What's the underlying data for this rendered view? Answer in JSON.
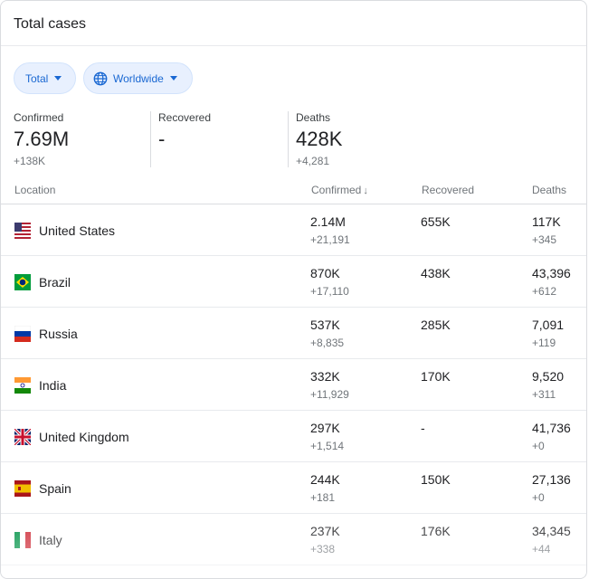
{
  "card": {
    "title": "Total cases"
  },
  "filters": {
    "type": "Total",
    "region": "Worldwide"
  },
  "stats": [
    {
      "label": "Confirmed",
      "value": "7.69M",
      "delta": "+138K"
    },
    {
      "label": "Recovered",
      "value": "-",
      "delta": ""
    },
    {
      "label": "Deaths",
      "value": "428K",
      "delta": "+4,281"
    }
  ],
  "table": {
    "headers": {
      "location": "Location",
      "confirmed": "Confirmed",
      "recovered": "Recovered",
      "deaths": "Deaths"
    },
    "sort_indicator": "↓",
    "rows": [
      {
        "country": "United States",
        "flag": "us-flag-icon",
        "confirmed": "2.14M",
        "confirmed_delta": "+21,191",
        "recovered": "655K",
        "deaths": "117K",
        "deaths_delta": "+345"
      },
      {
        "country": "Brazil",
        "flag": "brazil-flag-icon",
        "confirmed": "870K",
        "confirmed_delta": "+17,110",
        "recovered": "438K",
        "deaths": "43,396",
        "deaths_delta": "+612"
      },
      {
        "country": "Russia",
        "flag": "russia-flag-icon",
        "confirmed": "537K",
        "confirmed_delta": "+8,835",
        "recovered": "285K",
        "deaths": "7,091",
        "deaths_delta": "+119"
      },
      {
        "country": "India",
        "flag": "india-flag-icon",
        "confirmed": "332K",
        "confirmed_delta": "+11,929",
        "recovered": "170K",
        "deaths": "9,520",
        "deaths_delta": "+311"
      },
      {
        "country": "United Kingdom",
        "flag": "uk-flag-icon",
        "confirmed": "297K",
        "confirmed_delta": "+1,514",
        "recovered": "-",
        "deaths": "41,736",
        "deaths_delta": "+0"
      },
      {
        "country": "Spain",
        "flag": "spain-flag-icon",
        "confirmed": "244K",
        "confirmed_delta": "+181",
        "recovered": "150K",
        "deaths": "27,136",
        "deaths_delta": "+0"
      },
      {
        "country": "Italy",
        "flag": "italy-flag-icon",
        "confirmed": "237K",
        "confirmed_delta": "+338",
        "recovered": "176K",
        "deaths": "34,345",
        "deaths_delta": "+44"
      }
    ]
  },
  "colors": {
    "chip_bg": "#e8f0fe",
    "chip_text": "#1967d2",
    "border": "#dadce0",
    "muted": "#70757a"
  }
}
